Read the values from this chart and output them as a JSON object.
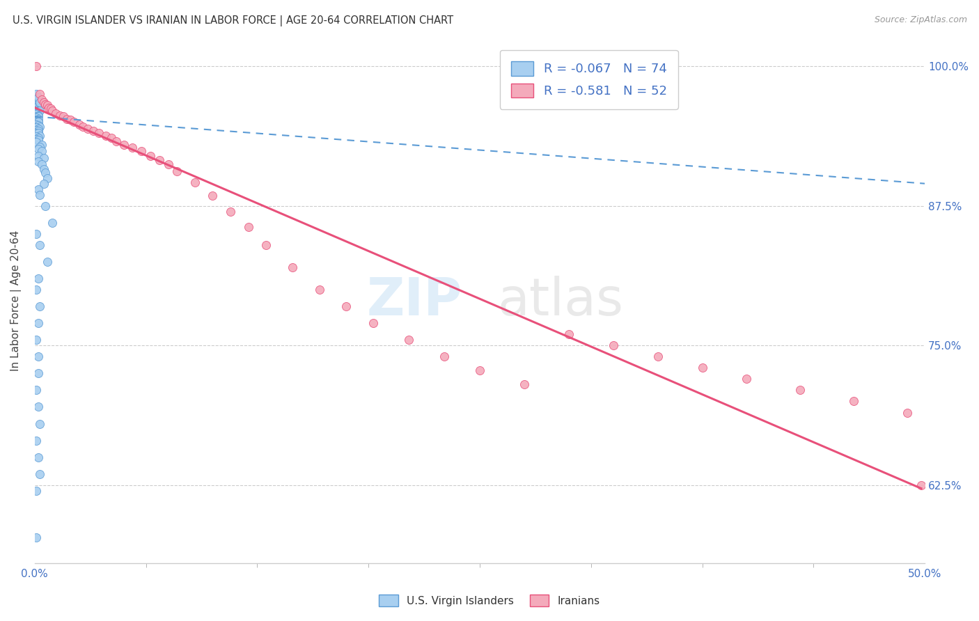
{
  "title": "U.S. VIRGIN ISLANDER VS IRANIAN IN LABOR FORCE | AGE 20-64 CORRELATION CHART",
  "source": "Source: ZipAtlas.com",
  "ylabel": "In Labor Force | Age 20-64",
  "ytick_labels": [
    "62.5%",
    "75.0%",
    "87.5%",
    "100.0%"
  ],
  "ytick_values": [
    0.625,
    0.75,
    0.875,
    1.0
  ],
  "xlim": [
    0.0,
    0.5
  ],
  "ylim": [
    0.555,
    1.025
  ],
  "r_blue": -0.067,
  "n_blue": 74,
  "r_pink": -0.581,
  "n_pink": 52,
  "color_blue": "#A8CFF0",
  "color_pink": "#F4AABB",
  "color_blue_line": "#5B9BD5",
  "color_pink_line": "#E8507A",
  "watermark": "ZIPatlas",
  "legend_label_blue": "U.S. Virgin Islanders",
  "legend_label_pink": "Iranians",
  "blue_scatter_x": [
    0.001,
    0.002,
    0.001,
    0.002,
    0.003,
    0.001,
    0.002,
    0.001,
    0.002,
    0.003,
    0.001,
    0.001,
    0.002,
    0.001,
    0.002,
    0.001,
    0.002,
    0.001,
    0.001,
    0.002,
    0.001,
    0.002,
    0.001,
    0.002,
    0.003,
    0.001,
    0.002,
    0.001,
    0.002,
    0.001,
    0.002,
    0.003,
    0.001,
    0.002,
    0.001,
    0.002,
    0.001,
    0.004,
    0.003,
    0.002,
    0.004,
    0.002,
    0.005,
    0.002,
    0.004,
    0.005,
    0.006,
    0.007,
    0.005,
    0.002,
    0.003,
    0.006,
    0.01,
    0.001,
    0.003,
    0.007,
    0.002,
    0.001,
    0.003,
    0.002,
    0.001,
    0.002,
    0.002,
    0.001,
    0.002,
    0.003,
    0.001,
    0.002,
    0.003,
    0.001,
    0.001,
    0.002,
    0.003,
    0.001
  ],
  "blue_scatter_y": [
    0.97,
    0.97,
    0.965,
    0.965,
    0.965,
    0.963,
    0.962,
    0.96,
    0.96,
    0.96,
    0.958,
    0.957,
    0.956,
    0.955,
    0.955,
    0.954,
    0.953,
    0.952,
    0.951,
    0.95,
    0.95,
    0.95,
    0.948,
    0.947,
    0.946,
    0.945,
    0.944,
    0.943,
    0.942,
    0.94,
    0.94,
    0.938,
    0.937,
    0.936,
    0.935,
    0.934,
    0.932,
    0.93,
    0.928,
    0.926,
    0.924,
    0.92,
    0.918,
    0.915,
    0.912,
    0.908,
    0.905,
    0.9,
    0.895,
    0.89,
    0.885,
    0.875,
    0.86,
    0.85,
    0.84,
    0.825,
    0.81,
    0.8,
    0.785,
    0.77,
    0.755,
    0.74,
    0.725,
    0.71,
    0.695,
    0.68,
    0.665,
    0.65,
    0.635,
    0.62,
    0.975,
    0.972,
    0.968,
    0.578
  ],
  "pink_scatter_x": [
    0.001,
    0.003,
    0.004,
    0.005,
    0.006,
    0.007,
    0.008,
    0.009,
    0.01,
    0.012,
    0.014,
    0.016,
    0.018,
    0.02,
    0.022,
    0.025,
    0.027,
    0.03,
    0.033,
    0.036,
    0.04,
    0.043,
    0.046,
    0.05,
    0.055,
    0.06,
    0.065,
    0.07,
    0.075,
    0.08,
    0.09,
    0.1,
    0.11,
    0.12,
    0.13,
    0.145,
    0.16,
    0.175,
    0.19,
    0.21,
    0.23,
    0.25,
    0.275,
    0.3,
    0.325,
    0.35,
    0.375,
    0.4,
    0.43,
    0.46,
    0.49,
    0.498
  ],
  "pink_scatter_y": [
    1.0,
    0.975,
    0.97,
    0.968,
    0.966,
    0.965,
    0.963,
    0.962,
    0.96,
    0.958,
    0.956,
    0.955,
    0.953,
    0.952,
    0.95,
    0.948,
    0.946,
    0.944,
    0.942,
    0.94,
    0.938,
    0.936,
    0.933,
    0.93,
    0.927,
    0.924,
    0.92,
    0.916,
    0.912,
    0.906,
    0.896,
    0.884,
    0.87,
    0.856,
    0.84,
    0.82,
    0.8,
    0.785,
    0.77,
    0.755,
    0.74,
    0.728,
    0.715,
    0.76,
    0.75,
    0.74,
    0.73,
    0.72,
    0.71,
    0.7,
    0.69,
    0.625
  ],
  "blue_line_x": [
    0.0,
    0.5
  ],
  "blue_line_y": [
    0.955,
    0.895
  ],
  "pink_line_x": [
    0.0,
    0.498
  ],
  "pink_line_y": [
    0.963,
    0.622
  ]
}
